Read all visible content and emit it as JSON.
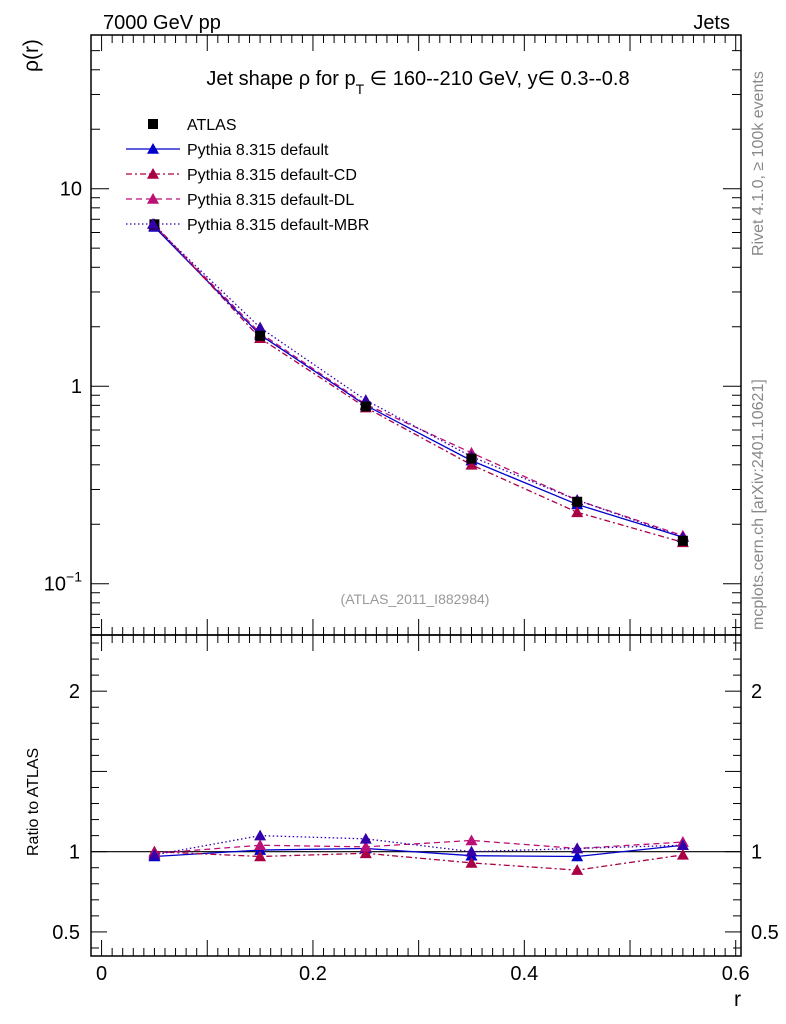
{
  "header": {
    "left": "7000 GeV pp",
    "right": "Jets"
  },
  "side": {
    "rivet": "Rivet 4.1.0, ≥ 100k events",
    "mcplots": "mcplots.cern.ch [arXiv:2401.10621]"
  },
  "chart_data": {
    "type": "line",
    "title": "Jet shape ρ for p_T ∈ 160--210 GeV, y∈ 0.3--0.8",
    "title_parts": {
      "prefix": "Jet shape ρ for p",
      "sub": "T",
      "suffix": " ∈ 160--210 GeV, y∈ 0.3--0.8"
    },
    "ylabel": "ρ(r)",
    "xlabel": "r",
    "ratio_ylabel": "Ratio to ATLAS",
    "analysis_label": "(ATLAS_2011_I882984)",
    "x": [
      0.05,
      0.15,
      0.25,
      0.35,
      0.45,
      0.55
    ],
    "xlim": [
      -0.01,
      0.605
    ],
    "ylim": [
      0.055,
      60
    ],
    "yscale": "log",
    "ratio_ylim": [
      0.35,
      2.35
    ],
    "x_ticks": [
      0,
      0.2,
      0.4,
      0.6
    ],
    "x_tick_labels": [
      "0",
      "0.2",
      "0.4",
      "0.6"
    ],
    "y_ticks": [
      {
        "value": 10,
        "label": "10"
      },
      {
        "value": 1,
        "label": "1"
      },
      {
        "value": 0.1,
        "base": "10",
        "exp": "−1"
      }
    ],
    "ratio_ticks": [
      {
        "value": 0.5,
        "label": "0.5"
      },
      {
        "value": 1,
        "label": "1"
      },
      {
        "value": 2,
        "label": "2"
      }
    ],
    "data": {
      "name": "ATLAS",
      "values": [
        6.6,
        1.8,
        0.79,
        0.43,
        0.26,
        0.165
      ],
      "errors": [
        0.15,
        0.05,
        0.02,
        0.015,
        0.01,
        0.006
      ]
    },
    "series": [
      {
        "name": "Pythia 8.315 default",
        "color": "#0000cc",
        "dash": "",
        "values": [
          6.4,
          1.82,
          0.8,
          0.42,
          0.252,
          0.172
        ],
        "ratio": [
          0.97,
          1.01,
          1.02,
          0.975,
          0.97,
          1.04
        ],
        "ratio_err": [
          0.01,
          0.02,
          0.02,
          0.03,
          0.03,
          0.03
        ]
      },
      {
        "name": "Pythia 8.315 default-CD",
        "color": "#aa0044",
        "dash": "6,3,2,3",
        "values": [
          6.6,
          1.75,
          0.78,
          0.4,
          0.23,
          0.162
        ],
        "ratio": [
          1.0,
          0.97,
          0.99,
          0.93,
          0.885,
          0.98
        ],
        "ratio_err": [
          0.01,
          0.02,
          0.03,
          0.03,
          0.03,
          0.03
        ]
      },
      {
        "name": "Pythia 8.315 default-DL",
        "color": "#bb1177",
        "dash": "6,4",
        "values": [
          6.5,
          1.86,
          0.81,
          0.46,
          0.265,
          0.175
        ],
        "ratio": [
          0.99,
          1.04,
          1.03,
          1.07,
          1.02,
          1.06
        ],
        "ratio_err": [
          0.01,
          0.02,
          0.03,
          0.03,
          0.03,
          0.03
        ]
      },
      {
        "name": "Pythia 8.315 default-MBR",
        "color": "#3300aa",
        "dash": "1.5,2.5",
        "values": [
          6.45,
          1.98,
          0.85,
          0.44,
          0.265,
          0.172
        ],
        "ratio": [
          0.98,
          1.1,
          1.08,
          1.0,
          1.02,
          1.04
        ],
        "ratio_err": [
          0.01,
          0.02,
          0.03,
          0.03,
          0.03,
          0.03
        ]
      }
    ]
  }
}
